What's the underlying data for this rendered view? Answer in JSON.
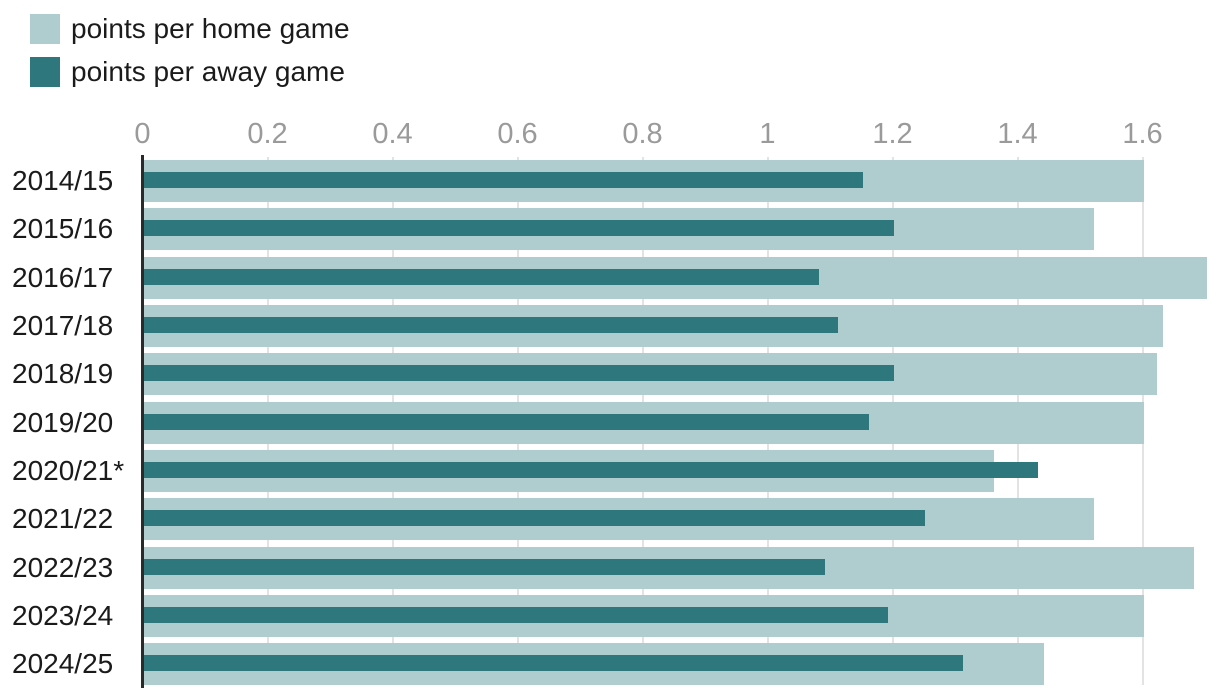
{
  "chart_data": {
    "type": "bar",
    "orientation": "horizontal",
    "title": "",
    "categories": [
      "2014/15",
      "2015/16",
      "2016/17",
      "2017/18",
      "2018/19",
      "2019/20",
      "2020/21*",
      "2021/22",
      "2022/23",
      "2023/24",
      "2024/25"
    ],
    "series": [
      {
        "name": "points per home game",
        "color": "#afccce",
        "values": [
          1.6,
          1.52,
          1.7,
          1.63,
          1.62,
          1.6,
          1.36,
          1.52,
          1.68,
          1.6,
          1.44
        ]
      },
      {
        "name": "points per away game",
        "color": "#2e787d",
        "values": [
          1.15,
          1.2,
          1.08,
          1.11,
          1.2,
          1.16,
          1.43,
          1.25,
          1.09,
          1.19,
          1.31
        ]
      }
    ],
    "xtick_values": [
      0,
      0.2,
      0.4,
      0.6,
      0.8,
      1,
      1.2,
      1.4,
      1.6
    ],
    "xtick_labels": [
      "0",
      "0.2",
      "0.4",
      "0.6",
      "0.8",
      "1",
      "1.2",
      "1.4",
      "1.6"
    ],
    "xlim": [
      0,
      1.7
    ],
    "grid": true,
    "legend_position": "top-left",
    "colors": {
      "grid": "#e3e3e3",
      "axis_line": "#2a2a2a",
      "tick_label": "#9a9a9a",
      "category_label": "#1a1a1a"
    }
  }
}
